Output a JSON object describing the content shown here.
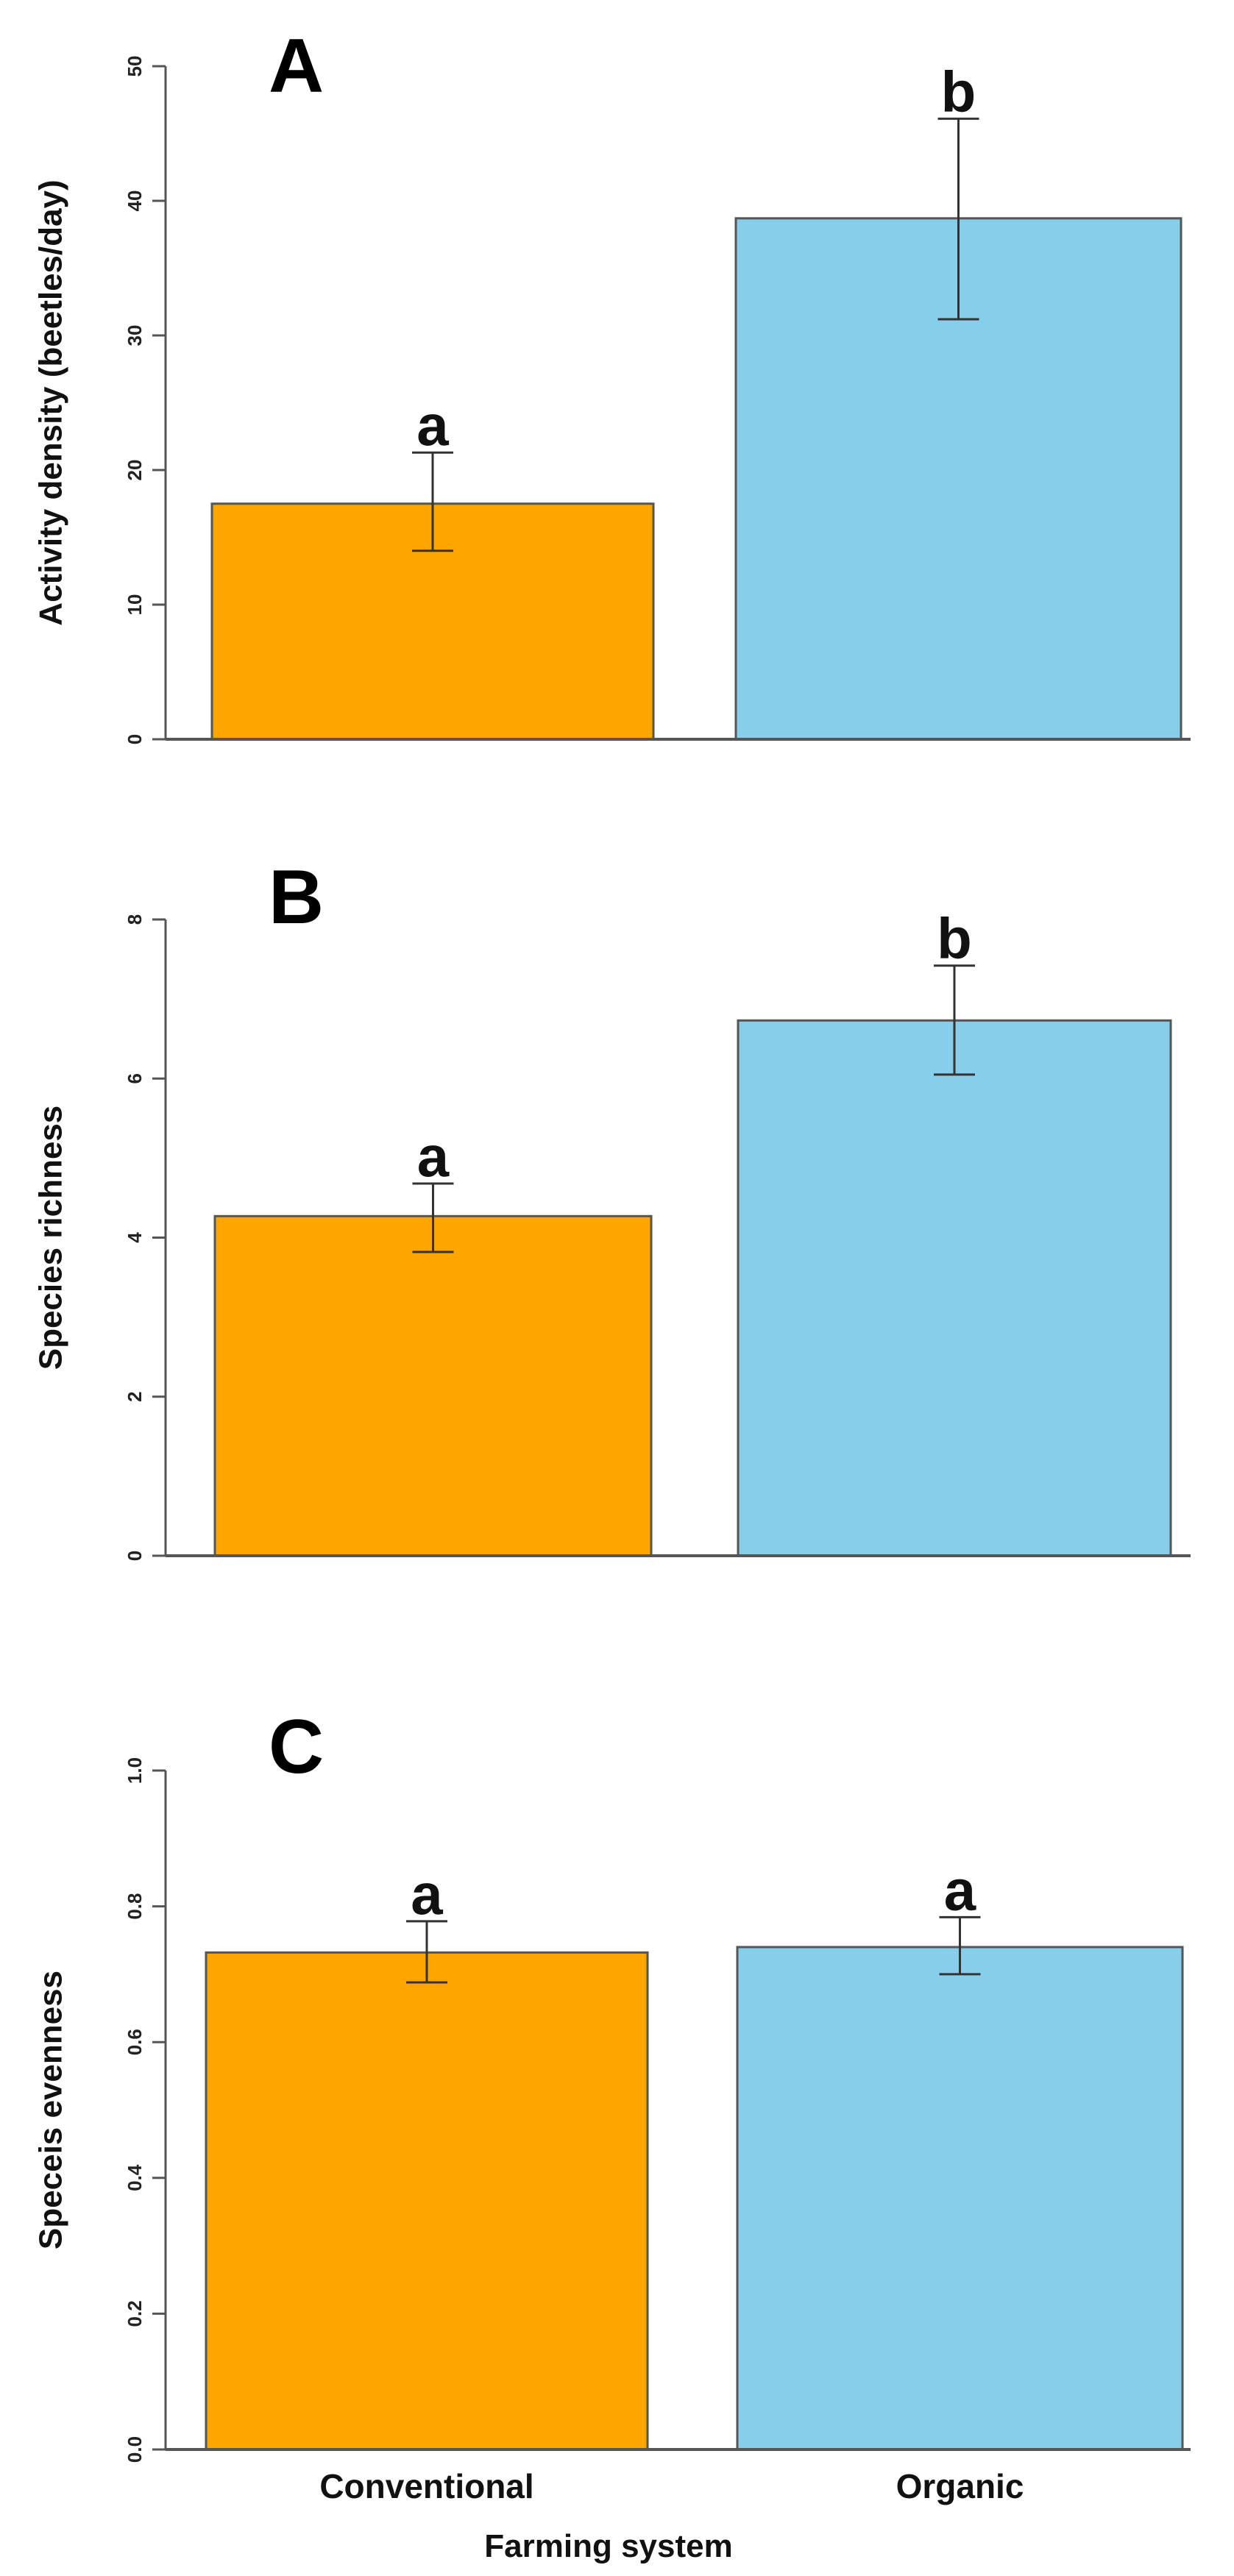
{
  "colors": {
    "conventional": "#FFA500",
    "organic": "#87CEEB",
    "axis": "#555555",
    "bar_edge": "#555555",
    "error": "#333333"
  },
  "xlabel": "Farming system",
  "chart_data": [
    {
      "type": "bar",
      "panel": "A",
      "categories": [
        "Conventional",
        "Organic"
      ],
      "values": [
        17.5,
        38.7
      ],
      "errors": [
        [
          14,
          21.3
        ],
        [
          31.2,
          46.1
        ]
      ],
      "sig_letters": [
        "a",
        "b"
      ],
      "ylabel": "Activity density (beetles/day)",
      "ylim": [
        0,
        50
      ],
      "yticks": [
        0,
        10,
        20,
        30,
        40,
        50
      ],
      "ytick_labels": [
        "0",
        "10",
        "20",
        "30",
        "40",
        "50"
      ]
    },
    {
      "type": "bar",
      "panel": "B",
      "categories": [
        "Conventional",
        "Organic"
      ],
      "values": [
        4.27,
        6.73
      ],
      "errors": [
        [
          3.82,
          4.68
        ],
        [
          6.05,
          7.42
        ]
      ],
      "sig_letters": [
        "a",
        "b"
      ],
      "ylabel": "Species richness",
      "ylim": [
        0,
        8
      ],
      "yticks": [
        0,
        2,
        4,
        6,
        8
      ],
      "ytick_labels": [
        "0",
        "2",
        "4",
        "6",
        "8"
      ]
    },
    {
      "type": "bar",
      "panel": "C",
      "categories": [
        "Conventional",
        "Organic"
      ],
      "values": [
        0.732,
        0.74
      ],
      "errors": [
        [
          0.688,
          0.778
        ],
        [
          0.7,
          0.784
        ]
      ],
      "sig_letters": [
        "a",
        "a"
      ],
      "ylabel": "Speceis evenness",
      "ylim": [
        0,
        1
      ],
      "yticks": [
        0,
        0.2,
        0.4,
        0.6,
        0.8,
        1
      ],
      "ytick_labels": [
        "0.0",
        "0.2",
        "0.4",
        "0.6",
        "0.8",
        "1.0"
      ]
    }
  ]
}
